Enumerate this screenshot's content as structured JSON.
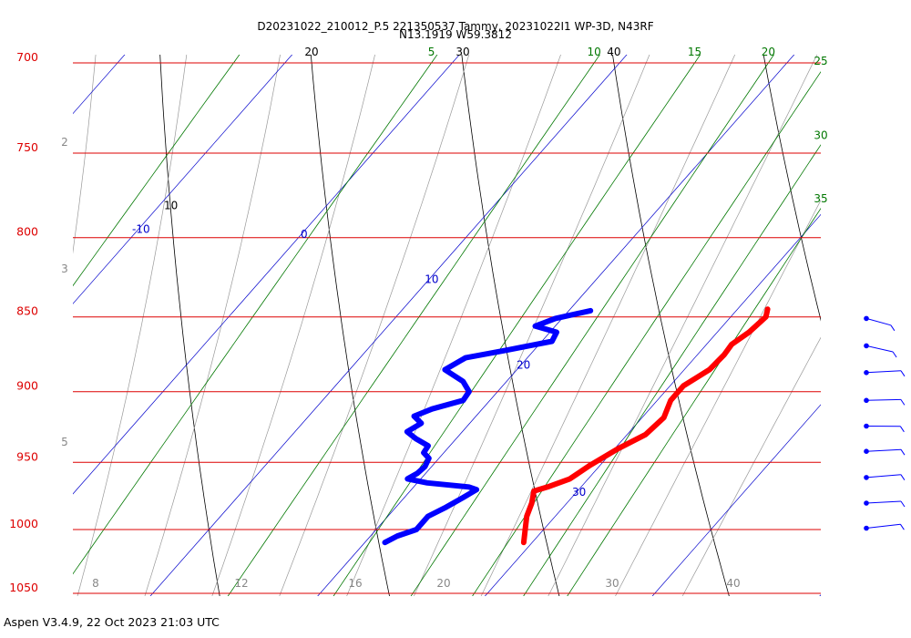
{
  "header": {
    "line1": "D20231022_210012_P.5 221350537 Tammy, 20231022I1 WP-3D, N43RF",
    "line2": "N13.1919 W59.3812"
  },
  "footer": "Aspen V3.4.9, 22 Oct 2023  21:03 UTC",
  "colors": {
    "isobar": "#dd0000",
    "isotherm": "#0000cc",
    "dry_adiabat": "#000000",
    "moist_adiabat": "#999999",
    "mixing_ratio": "#007700",
    "temperature": "#ff0000",
    "dewpoint": "#0000ff",
    "wind_barb": "#0000ff"
  },
  "chart_data": {
    "type": "skew-t",
    "pressure_unit": "hPa",
    "pressure_range": [
      1050,
      700
    ],
    "isobars": [
      700,
      750,
      800,
      850,
      900,
      950,
      1000,
      1050
    ],
    "isotherm_labels": [
      "-10",
      "0",
      "10",
      "20",
      "30"
    ],
    "dry_adiabat_labels": [
      "10",
      "20",
      "30",
      "40"
    ],
    "mixing_ratio_labels": [
      "5",
      "10",
      "15",
      "20",
      "25",
      "30",
      "35"
    ],
    "moist_adiabat_labels": [
      "2",
      "3",
      "5"
    ],
    "bottom_labels": [
      "8",
      "12",
      "16",
      "20",
      "30",
      "40"
    ],
    "temperature_profile": [
      {
        "p": 1010,
        "t": 29.5
      },
      {
        "p": 1000,
        "t": 28.9
      },
      {
        "p": 990,
        "t": 28.3
      },
      {
        "p": 980,
        "t": 27.9
      },
      {
        "p": 971,
        "t": 27.4
      },
      {
        "p": 968,
        "t": 28.0
      },
      {
        "p": 962,
        "t": 28.9
      },
      {
        "p": 952,
        "t": 29.4
      },
      {
        "p": 940,
        "t": 30.2
      },
      {
        "p": 930,
        "t": 31.1
      },
      {
        "p": 918,
        "t": 31.3
      },
      {
        "p": 906,
        "t": 30.8
      },
      {
        "p": 896,
        "t": 30.8
      },
      {
        "p": 885,
        "t": 31.5
      },
      {
        "p": 875,
        "t": 31.6
      },
      {
        "p": 868,
        "t": 31.5
      },
      {
        "p": 860,
        "t": 31.9
      },
      {
        "p": 850,
        "t": 32.1
      },
      {
        "p": 845,
        "t": 31.8
      }
    ],
    "dewpoint_profile": [
      {
        "p": 1010,
        "t": 21.2
      },
      {
        "p": 1005,
        "t": 21.6
      },
      {
        "p": 1000,
        "t": 22.4
      },
      {
        "p": 990,
        "t": 22.4
      },
      {
        "p": 983,
        "t": 23.0
      },
      {
        "p": 976,
        "t": 23.5
      },
      {
        "p": 970,
        "t": 23.9
      },
      {
        "p": 968,
        "t": 23.3
      },
      {
        "p": 965,
        "t": 20.6
      },
      {
        "p": 962,
        "t": 19.2
      },
      {
        "p": 958,
        "t": 19.5
      },
      {
        "p": 953,
        "t": 19.6
      },
      {
        "p": 947,
        "t": 19.4
      },
      {
        "p": 943,
        "t": 18.8
      },
      {
        "p": 938,
        "t": 18.7
      },
      {
        "p": 933,
        "t": 17.6
      },
      {
        "p": 928,
        "t": 16.7
      },
      {
        "p": 922,
        "t": 17.1
      },
      {
        "p": 917,
        "t": 16.3
      },
      {
        "p": 912,
        "t": 17.0
      },
      {
        "p": 906,
        "t": 18.4
      },
      {
        "p": 900,
        "t": 18.3
      },
      {
        "p": 893,
        "t": 17.4
      },
      {
        "p": 885,
        "t": 15.7
      },
      {
        "p": 877,
        "t": 16.3
      },
      {
        "p": 872,
        "t": 18.3
      },
      {
        "p": 866,
        "t": 20.6
      },
      {
        "p": 860,
        "t": 20.4
      },
      {
        "p": 856,
        "t": 18.8
      },
      {
        "p": 851,
        "t": 19.6
      },
      {
        "p": 846,
        "t": 21.3
      }
    ],
    "wind_barbs": [
      {
        "p": 851,
        "dir": 135,
        "spd": 10
      },
      {
        "p": 869,
        "dir": 130,
        "spd": 10
      },
      {
        "p": 887,
        "dir": 90,
        "spd": 15
      },
      {
        "p": 906,
        "dir": 95,
        "spd": 15
      },
      {
        "p": 924,
        "dir": 100,
        "spd": 15
      },
      {
        "p": 942,
        "dir": 90,
        "spd": 15
      },
      {
        "p": 961,
        "dir": 85,
        "spd": 15
      },
      {
        "p": 980,
        "dir": 90,
        "spd": 15
      },
      {
        "p": 999,
        "dir": 80,
        "spd": 15
      }
    ]
  }
}
